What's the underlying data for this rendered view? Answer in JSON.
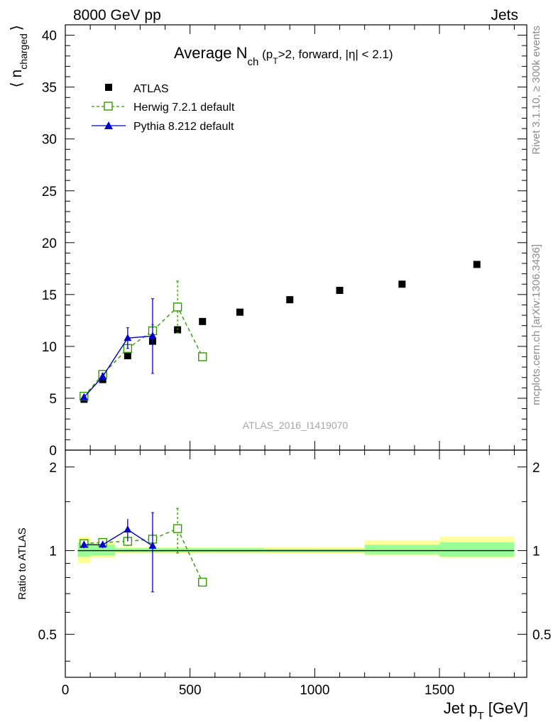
{
  "header": {
    "energy": "8000 GeV pp",
    "process": "Jets",
    "side_top": "Rivet 3.1.10, ≥ 300k events",
    "side_bottom": "mcplots.cern.ch [arXiv:1306.3436]",
    "watermark": "ATLAS_2016_I1419070"
  },
  "chart_data": {
    "type": "scatter",
    "title": {
      "main": "Average N",
      "main_sub": "ch",
      "open": " (p",
      "open_sub": "T",
      "rest": ">2, forward, |η| < 2.1)"
    },
    "xlabel": {
      "main": "Jet p",
      "sub": "T",
      "unit": " [GeV]"
    },
    "ylabel": {
      "main": "⟨ n",
      "sub": "charged",
      "close": "⟩"
    },
    "ratio_ylabel": "Ratio to ATLAS",
    "xlim": [
      0,
      1850
    ],
    "ylim": [
      0,
      41
    ],
    "ratio_ylim": [
      0.35,
      2.3
    ],
    "x_ticks": [
      0,
      500,
      1000,
      1500
    ],
    "x_tick_labels": [
      "0",
      "500",
      "1000",
      "1500"
    ],
    "y_ticks": [
      0,
      5,
      10,
      15,
      20,
      25,
      30,
      35,
      40
    ],
    "y_tick_labels": [
      "0",
      "5",
      "10",
      "15",
      "20",
      "25",
      "30",
      "35",
      "40"
    ],
    "ratio_ticks": [
      0.5,
      1,
      2
    ],
    "ratio_tick_labels": [
      "0.5",
      "1",
      "2"
    ],
    "ratio_tick_labels_right": [
      "0.5",
      "1",
      "2"
    ],
    "ratio_band": [
      {
        "x0": 50,
        "x1": 100,
        "in": [
          0.95,
          1.07
        ],
        "out": [
          0.9,
          1.12
        ]
      },
      {
        "x0": 100,
        "x1": 200,
        "in": [
          0.96,
          1.05
        ],
        "out": [
          0.94,
          1.07
        ]
      },
      {
        "x0": 200,
        "x1": 300,
        "in": [
          0.985,
          1.02
        ],
        "out": [
          0.975,
          1.03
        ]
      },
      {
        "x0": 300,
        "x1": 400,
        "in": [
          0.985,
          1.02
        ],
        "out": [
          0.975,
          1.03
        ]
      },
      {
        "x0": 400,
        "x1": 500,
        "in": [
          0.985,
          1.02
        ],
        "out": [
          0.975,
          1.03
        ]
      },
      {
        "x0": 500,
        "x1": 600,
        "in": [
          0.985,
          1.02
        ],
        "out": [
          0.975,
          1.03
        ]
      },
      {
        "x0": 600,
        "x1": 800,
        "in": [
          0.985,
          1.02
        ],
        "out": [
          0.975,
          1.03
        ]
      },
      {
        "x0": 800,
        "x1": 1000,
        "in": [
          0.985,
          1.015
        ],
        "out": [
          0.975,
          1.03
        ]
      },
      {
        "x0": 1000,
        "x1": 1200,
        "in": [
          0.985,
          1.015
        ],
        "out": [
          0.975,
          1.03
        ]
      },
      {
        "x0": 1200,
        "x1": 1500,
        "in": [
          0.97,
          1.05
        ],
        "out": [
          0.96,
          1.09
        ]
      },
      {
        "x0": 1500,
        "x1": 1800,
        "in": [
          0.95,
          1.07
        ],
        "out": [
          0.94,
          1.12
        ]
      }
    ],
    "series": [
      {
        "name": "ATLAS",
        "color": "#000000",
        "marker": "filled-square",
        "points": [
          {
            "x": 75,
            "y": 4.9
          },
          {
            "x": 150,
            "y": 6.8
          },
          {
            "x": 250,
            "y": 9.1
          },
          {
            "x": 350,
            "y": 10.5
          },
          {
            "x": 450,
            "y": 11.6
          },
          {
            "x": 550,
            "y": 12.4
          },
          {
            "x": 700,
            "y": 13.3
          },
          {
            "x": 900,
            "y": 14.5
          },
          {
            "x": 1100,
            "y": 15.4
          },
          {
            "x": 1350,
            "y": 16.0
          },
          {
            "x": 1650,
            "y": 17.9
          }
        ]
      },
      {
        "name": "Herwig 7.2.1 default",
        "color": "#339900",
        "marker": "open-square",
        "dashed": true,
        "points": [
          {
            "x": 75,
            "y": 5.2,
            "err": 0.1
          },
          {
            "x": 150,
            "y": 7.3,
            "err": 0.15
          },
          {
            "x": 250,
            "y": 9.8,
            "err": 0.3
          },
          {
            "x": 350,
            "y": 11.5,
            "err": 0.6
          },
          {
            "x": 450,
            "y": 13.8,
            "err": 2.5
          },
          {
            "x": 550,
            "y": 9.0,
            "err": 0.1
          }
        ],
        "ratio": [
          {
            "x": 75,
            "y": 1.06,
            "err": 0.02
          },
          {
            "x": 150,
            "y": 1.07,
            "err": 0.02
          },
          {
            "x": 250,
            "y": 1.08,
            "err": 0.04
          },
          {
            "x": 350,
            "y": 1.1,
            "err": 0.06
          },
          {
            "x": 450,
            "y": 1.2,
            "err": 0.22
          },
          {
            "x": 550,
            "y": 0.77,
            "err": 0.01
          }
        ]
      },
      {
        "name": "Pythia 8.212 default",
        "color": "#0000cc",
        "marker": "filled-triangle",
        "dashed": false,
        "points": [
          {
            "x": 75,
            "y": 5.1,
            "err": 0.15
          },
          {
            "x": 150,
            "y": 7.1,
            "err": 0.3
          },
          {
            "x": 250,
            "y": 10.8,
            "err": 1.0
          },
          {
            "x": 350,
            "y": 11.0,
            "err": 3.6
          }
        ],
        "ratio": [
          {
            "x": 75,
            "y": 1.05,
            "err": 0.03
          },
          {
            "x": 150,
            "y": 1.05,
            "err": 0.03
          },
          {
            "x": 250,
            "y": 1.19,
            "err": 0.11
          },
          {
            "x": 350,
            "y": 1.04,
            "err": 0.33
          }
        ]
      }
    ]
  }
}
